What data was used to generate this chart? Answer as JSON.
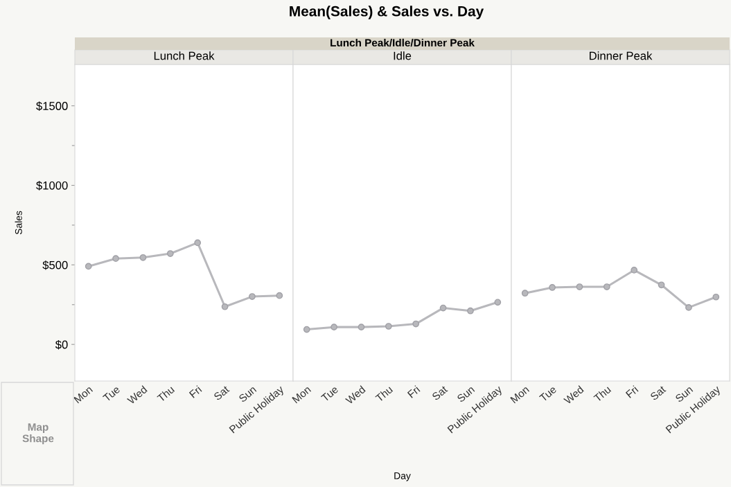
{
  "chart_data": [
    {
      "type": "line",
      "title": "Lunch Peak",
      "ylabel": "Sales",
      "annotations": [
        "Mean(Sales) & Sales vs. Day",
        "Lunch Peak/Idle/Dinner Peak",
        "Map Shape"
      ],
      "categories": [
        "Mon",
        "Tue",
        "Wed",
        "Thu",
        "Fri",
        "Sat",
        "Sun",
        "Public Holiday"
      ],
      "series": [
        {
          "color": "#b8b8bc",
          "values": [
            491,
            540,
            546,
            571,
            639,
            237,
            301,
            307
          ]
        }
      ],
      "ylim": [
        -230,
        1760
      ],
      "yticks": [
        {
          "value": 0,
          "label": "$0"
        },
        {
          "value": 250,
          "label": null
        },
        {
          "value": 500,
          "label": "$500"
        },
        {
          "value": 750,
          "label": null
        },
        {
          "value": 1000,
          "label": "$1000"
        },
        {
          "value": 1250,
          "label": null
        },
        {
          "value": 1500,
          "label": "$1500"
        }
      ],
      "marker": "circle",
      "line_style": "solid",
      "grid": false,
      "legend": false
    },
    {
      "type": "line",
      "title": "Idle",
      "xlabel": "Day",
      "categories": [
        "Mon",
        "Tue",
        "Wed",
        "Thu",
        "Fri",
        "Sat",
        "Sun",
        "Public Holiday"
      ],
      "series": [
        {
          "color": "#b8b8bc",
          "values": [
            94,
            109,
            109,
            114,
            129,
            229,
            211,
            265
          ]
        }
      ],
      "ylim": [
        -230,
        1760
      ],
      "tick_labels": "x",
      "marker": "circle",
      "line_style": "solid",
      "grid": false,
      "legend": false
    },
    {
      "type": "line",
      "title": "Dinner Peak",
      "categories": [
        "Mon",
        "Tue",
        "Wed",
        "Thu",
        "Fri",
        "Sat",
        "Sun",
        "Public Holiday"
      ],
      "series": [
        {
          "color": "#b8b8bc",
          "values": [
            322,
            358,
            362,
            362,
            467,
            374,
            232,
            298
          ]
        }
      ],
      "ylim": [
        -230,
        1760
      ],
      "tick_labels": "x",
      "marker": "circle",
      "line_style": "solid",
      "grid": false,
      "legend": false
    }
  ]
}
